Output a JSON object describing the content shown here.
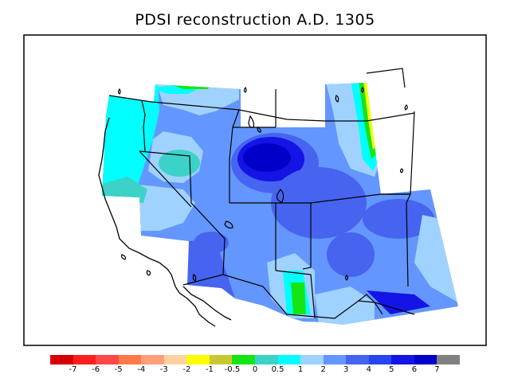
{
  "title": "PDSI reconstruction A.D. 1305",
  "legend": {
    "colors": [
      "#d40000",
      "#ff1e1e",
      "#ff4848",
      "#ff7a48",
      "#ffa078",
      "#ffd2a0",
      "#ffff00",
      "#c8c832",
      "#14e614",
      "#3cd2c8",
      "#00ffff",
      "#a0d2ff",
      "#6496ff",
      "#4664f0",
      "#2846f0",
      "#1414e6",
      "#0000c8",
      "#808080"
    ],
    "tick_labels": [
      "-7",
      "-6",
      "-5",
      "-4",
      "-3",
      "-2",
      "-1",
      "-0.5",
      "0",
      "0.5",
      "1",
      "2",
      "3",
      "4",
      "5",
      "6",
      "7"
    ]
  }
}
